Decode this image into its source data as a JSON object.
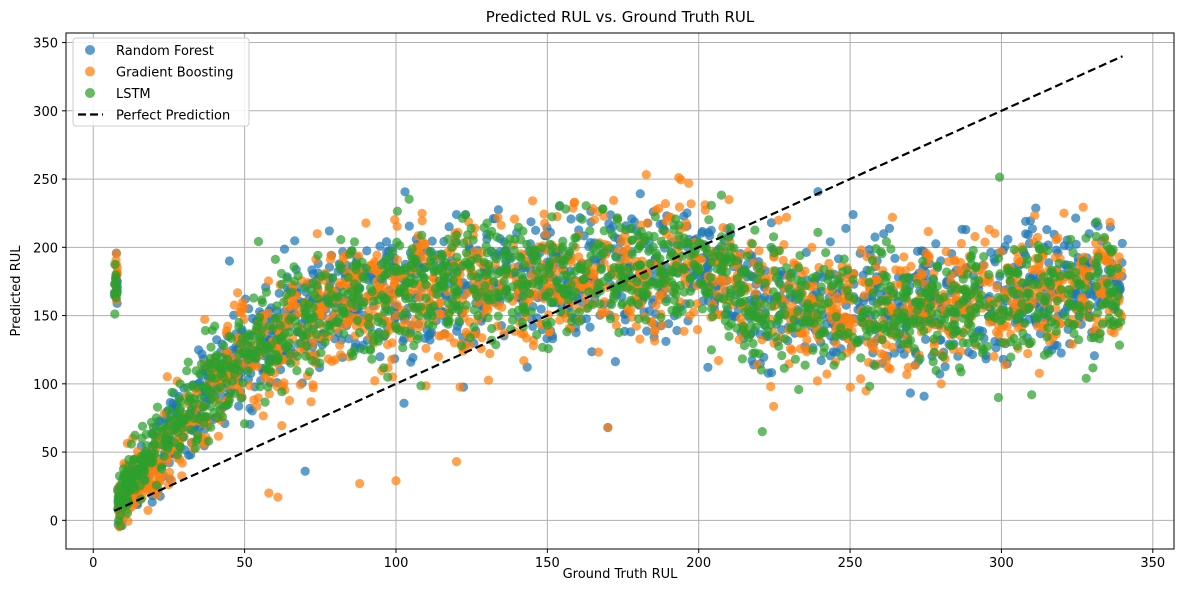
{
  "chart_data": {
    "type": "scatter",
    "title": "Predicted RUL vs. Ground Truth RUL",
    "xlabel": "Ground Truth RUL",
    "ylabel": "Predicted RUL",
    "xlim": [
      -9,
      357
    ],
    "ylim": [
      -21,
      357
    ],
    "x_ticks": [
      0,
      50,
      100,
      150,
      200,
      250,
      300,
      350
    ],
    "y_ticks": [
      0,
      50,
      100,
      150,
      200,
      250,
      300,
      350
    ],
    "grid": true,
    "legend_position": "top-left",
    "series": [
      {
        "name": "Random Forest",
        "color": "#1f77b4",
        "marker": "circle",
        "points_x": [
          8,
          12,
          18,
          25,
          30,
          35,
          40,
          45,
          50,
          55,
          60,
          65,
          70,
          75,
          80,
          85,
          90,
          95,
          100,
          110,
          120,
          130,
          140,
          150,
          160,
          170,
          180,
          190,
          200,
          210,
          220,
          230,
          240,
          250,
          260,
          270,
          280,
          290,
          300,
          310,
          320,
          330,
          340,
          45,
          78,
          120,
          123,
          154,
          185,
          224,
          251,
          308,
          315,
          329,
          70,
          170
        ],
        "points_y": [
          10,
          25,
          40,
          60,
          72,
          85,
          100,
          110,
          120,
          130,
          135,
          145,
          150,
          155,
          158,
          160,
          162,
          165,
          168,
          170,
          172,
          173,
          174,
          175,
          176,
          178,
          180,
          182,
          190,
          175,
          160,
          158,
          157,
          156,
          155,
          156,
          158,
          160,
          163,
          165,
          168,
          170,
          175,
          190,
          212,
          224,
          224,
          230,
          226,
          218,
          224,
          219,
          213,
          210,
          36,
          68
        ],
        "spread": 40
      },
      {
        "name": "Gradient Boosting",
        "color": "#ff7f0e",
        "marker": "circle",
        "points_x": [
          8,
          12,
          18,
          25,
          30,
          35,
          40,
          45,
          50,
          55,
          60,
          65,
          70,
          75,
          80,
          85,
          90,
          95,
          100,
          110,
          120,
          130,
          140,
          150,
          160,
          170,
          180,
          190,
          200,
          210,
          220,
          230,
          240,
          250,
          260,
          270,
          280,
          290,
          300,
          310,
          320,
          330,
          340,
          159,
          189,
          210,
          229,
          264,
          74,
          61,
          58,
          88,
          100,
          120,
          170
        ],
        "points_y": [
          8,
          22,
          38,
          55,
          68,
          80,
          95,
          105,
          115,
          125,
          130,
          140,
          145,
          152,
          155,
          158,
          160,
          162,
          165,
          168,
          170,
          172,
          173,
          174,
          176,
          178,
          180,
          183,
          192,
          176,
          162,
          158,
          157,
          156,
          154,
          155,
          157,
          160,
          162,
          165,
          167,
          170,
          175,
          233,
          232,
          235,
          222,
          222,
          210,
          17,
          20,
          27,
          29,
          43,
          68
        ],
        "spread": 42
      },
      {
        "name": "LSTM",
        "color": "#2ca02c",
        "marker": "circle",
        "points_x": [
          8,
          12,
          18,
          25,
          30,
          35,
          40,
          45,
          50,
          55,
          60,
          65,
          70,
          75,
          80,
          85,
          90,
          95,
          100,
          110,
          120,
          130,
          140,
          150,
          160,
          170,
          180,
          190,
          200,
          210,
          220,
          230,
          240,
          250,
          260,
          270,
          280,
          290,
          300,
          310,
          320,
          330,
          340,
          9,
          221,
          299,
          310,
          328
        ],
        "points_y": [
          12,
          28,
          42,
          62,
          75,
          88,
          100,
          112,
          122,
          130,
          137,
          145,
          150,
          155,
          158,
          160,
          163,
          165,
          168,
          170,
          172,
          173,
          174,
          176,
          177,
          179,
          181,
          184,
          188,
          175,
          160,
          157,
          156,
          155,
          155,
          156,
          158,
          160,
          162,
          165,
          168,
          170,
          172,
          -4,
          65,
          90,
          92,
          104
        ],
        "spread": 38
      },
      {
        "name": "Perfect Prediction",
        "color": "#000000",
        "marker": "dashed-line",
        "x": [
          7,
          340
        ],
        "y": [
          7,
          340
        ]
      }
    ]
  }
}
